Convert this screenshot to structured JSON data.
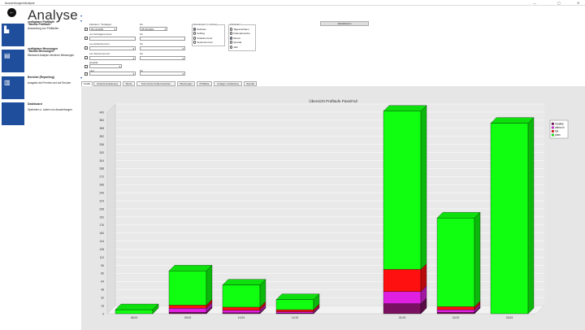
{
  "window": {
    "title": "Auswertungen/Analyse"
  },
  "header": {
    "title": "Analyse"
  },
  "sidebar": {
    "items": [
      {
        "title_line1": "verfügbare Prüfläufe",
        "title_line2": "\"Modus Prüfläufe\"",
        "desc": "Auswertung von Prüfläufen",
        "icon": "bar-chart-icon"
      },
      {
        "title_line1": "verfügbare Messungen",
        "title_line2": "\"Modus Messungen\"",
        "desc": "Messwert-Analyse einzelner Messungen",
        "icon": "measurement-icon"
      },
      {
        "title_line1": "Berichte (Reporting)",
        "title_line2": "",
        "desc": "Ausgabe als Preview und auf Drucker",
        "icon": "document-icon"
      },
      {
        "title_line1": "Dashboard",
        "title_line2": "",
        "desc": "Speichern u. Laden von Auswertungen",
        "icon": "dashboard-icon"
      }
    ]
  },
  "filters": {
    "date_label": "Zeitraum / Testtagen",
    "date_from": "25.10.2018",
    "bis_label": "bis",
    "date_to": "25.09.2019",
    "order_from_label": "von Auftragsnummer",
    "order_to_label": "bis",
    "article_from_label": "von Artikelnummer",
    "article_to_label": "bis",
    "serial_from_label": "von Seriennummer",
    "serial_to_label": "bis",
    "quality_label": "Qualität",
    "last_label": "Last",
    "apply_button": "aktualisieren"
  },
  "x_axis_group": {
    "title": "Verlaufswert (x-Achse)",
    "options": [
      "Zeitraum",
      "Auftrag",
      "Artikelnummer",
      "Seriennummer"
    ],
    "selected": 0
  },
  "period_group": {
    "title": "Zeitskalen",
    "options": [
      "Tageszeitraum",
      "Kalenderwoche",
      "Monat",
      "Quartal",
      "Jahr"
    ],
    "selected": 2
  },
  "tabs": [
    "Grafik",
    "Zusammenfassung",
    "Werte",
    "Summierte Fehlerursachen",
    "Messungen",
    "Prüfläufe",
    "Anlagen Auslastung",
    "Spezial"
  ],
  "active_tab": 0,
  "chart_data": {
    "type": "bar",
    "title": "Übersicht Prüfläufe Pass/Fail",
    "categories": [
      "08/19",
      "09/19",
      "10/19",
      "11/19",
      "12/19",
      "01/19",
      "02/19",
      "03/19"
    ],
    "ylim": [
      0,
      400
    ],
    "yticks": [
      0,
      16,
      32,
      48,
      64,
      80,
      96,
      112,
      128,
      144,
      160,
      176,
      192,
      208,
      224,
      240,
      256,
      272,
      288,
      304,
      320,
      336,
      352,
      368,
      384,
      400
    ],
    "stacked": true,
    "legend_position": "right",
    "series": [
      {
        "name": "invalide",
        "color": "#7a1060",
        "values": [
          0,
          3,
          2,
          1,
          0,
          20,
          3,
          0
        ]
      },
      {
        "name": "abbruch",
        "color": "#e020e0",
        "values": [
          0,
          8,
          5,
          3,
          0,
          24,
          5,
          0
        ]
      },
      {
        "name": "fail",
        "color": "#ff1010",
        "values": [
          0,
          6,
          6,
          4,
          0,
          44,
          6,
          0
        ]
      },
      {
        "name": "pass",
        "color": "#10ff10",
        "values": [
          8,
          68,
          44,
          20,
          0,
          314,
          176,
          378
        ]
      }
    ],
    "visible_labels": [
      "08/19",
      "09/19",
      "10/19",
      "11/19",
      "",
      "01/19",
      "02/19",
      "03/19"
    ]
  }
}
